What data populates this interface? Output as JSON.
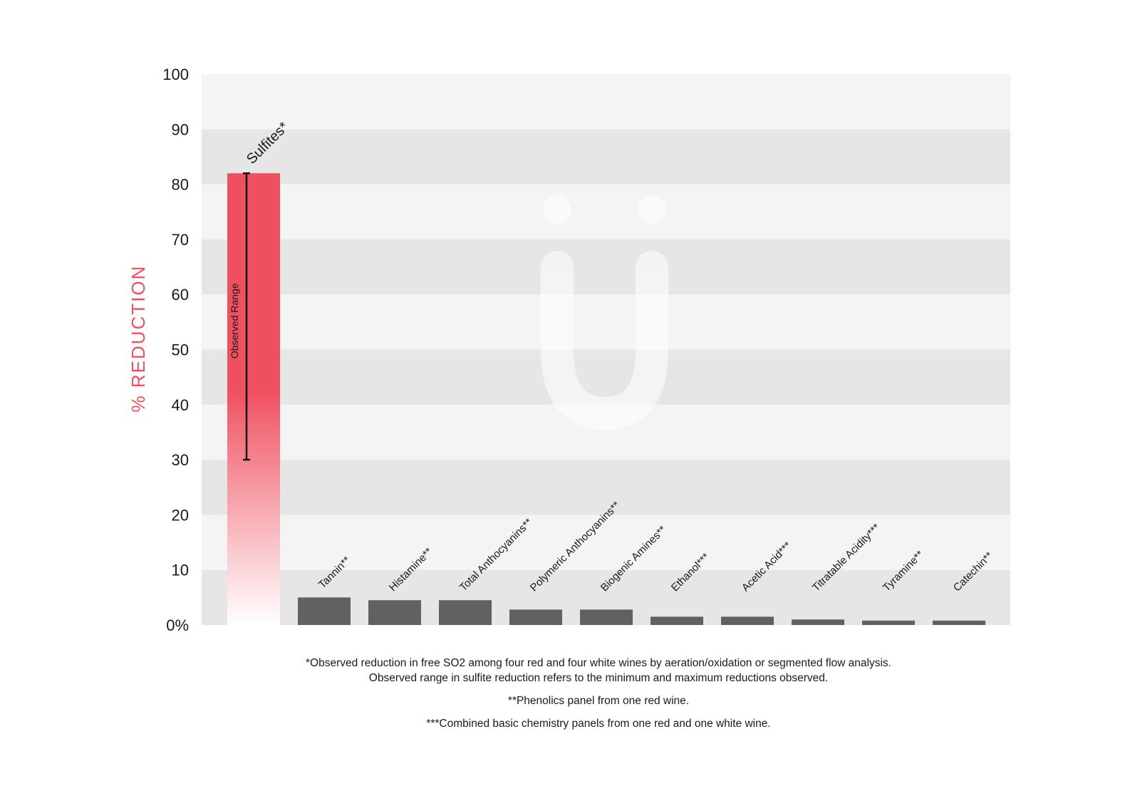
{
  "chart_data": {
    "type": "bar",
    "ylabel": "% REDUCTION",
    "ylim": [
      0,
      100
    ],
    "yticks": [
      "0%",
      "10",
      "20",
      "30",
      "40",
      "50",
      "60",
      "70",
      "80",
      "90",
      "100"
    ],
    "yticks_values": [
      0,
      10,
      20,
      30,
      40,
      50,
      60,
      70,
      80,
      90,
      100
    ],
    "grid": "alternating horizontal bands",
    "categories": [
      "Sulfites*",
      "Tannin**",
      "Histamine**",
      "Total Anthocyanins**",
      "Polymeric Anthocyanins**",
      "Biogenic Amines**",
      "Ethanol***",
      "Acetic Acid***",
      "Titratable Acidity***",
      "Tyramine**",
      "Catechin**"
    ],
    "values": [
      82,
      5,
      4.5,
      4.5,
      2.8,
      2.8,
      1.5,
      1.5,
      1,
      0.8,
      0.8
    ],
    "error_range": {
      "category": "Sulfites*",
      "min": 30,
      "max": 82,
      "label": "Observed Range"
    },
    "colors": {
      "highlight": "#ef5060",
      "bars": "#616161",
      "axis_label": "#ef5060",
      "band_light": "#f4f4f4",
      "band_dark": "#e6e6e6"
    }
  },
  "footnotes": {
    "line1": "*Observed reduction in free SO2 among four red and four white wines by aeration/oxidation or segmented flow analysis.",
    "line2": "Observed range in sulfite reduction  refers to the minimum and maximum reductions observed.",
    "line3": "**Phenolics panel from one red wine.",
    "line4": "***Combined basic chemistry panels from one red and one white wine."
  },
  "watermark_icon": "u-umlaut-logo-icon"
}
